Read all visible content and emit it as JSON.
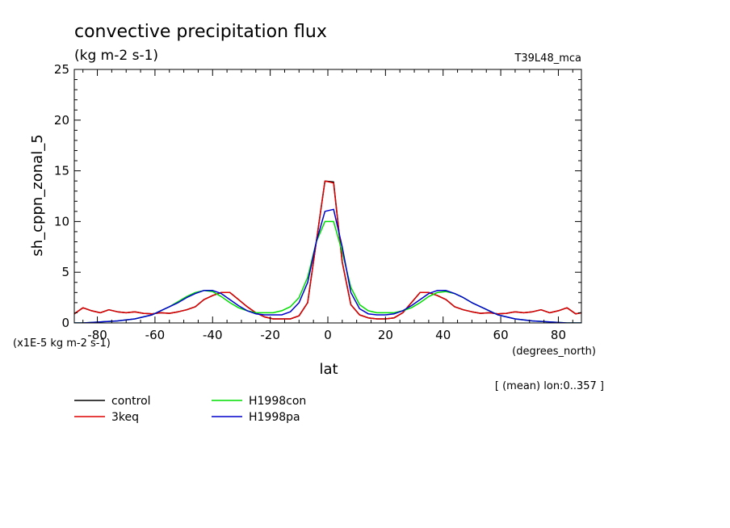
{
  "chart_data": {
    "type": "line",
    "title": "convective precipitation flux",
    "units": "(kg m-2 s-1)",
    "run_label": "T39L48_mca",
    "ylabel": "sh_cppn_zonal_5",
    "xlabel": "lat",
    "x_units": "(degrees_north)",
    "y_scale_note": "(x1E-5 kg m-2 s-1)",
    "mean_note": "[ (mean) lon:0..357 ]",
    "xlim": [
      -88,
      88
    ],
    "ylim": [
      0,
      25
    ],
    "x_ticks": [
      -80,
      -60,
      -40,
      -20,
      0,
      20,
      40,
      60,
      80
    ],
    "x_tick_labels": [
      "-80",
      "-60",
      "-40",
      "-20",
      "0",
      "20",
      "40",
      "60",
      "80"
    ],
    "y_ticks": [
      0,
      5,
      10,
      15,
      20,
      25
    ],
    "y_tick_labels": [
      "0",
      "5",
      "10",
      "15",
      "20",
      "25"
    ],
    "series": [
      {
        "name": "control",
        "color": "#000000",
        "x": [
          -88,
          -85,
          -82,
          -79,
          -76,
          -73,
          -70,
          -67,
          -64,
          -61,
          -58,
          -55,
          -52,
          -49,
          -46,
          -43,
          -40,
          -37,
          -34,
          -31,
          -28,
          -25,
          -22,
          -19,
          -16,
          -13,
          -10,
          -7,
          -4,
          -1,
          2,
          5,
          8,
          11,
          14,
          17,
          20,
          23,
          26,
          29,
          32,
          35,
          38,
          41,
          44,
          47,
          50,
          53,
          56,
          59,
          62,
          65,
          68,
          71,
          74,
          77,
          80,
          83,
          86,
          88
        ],
        "y": [
          0.9,
          1.5,
          1.2,
          1.0,
          1.3,
          1.1,
          1.0,
          1.1,
          0.95,
          0.9,
          1.0,
          0.95,
          1.1,
          1.3,
          1.6,
          2.3,
          2.7,
          3.0,
          3.0,
          2.3,
          1.6,
          1.0,
          0.6,
          0.4,
          0.4,
          0.4,
          0.7,
          2.0,
          8.0,
          14.0,
          13.9,
          6.0,
          1.8,
          0.8,
          0.5,
          0.4,
          0.4,
          0.5,
          1.0,
          2.0,
          3.0,
          3.0,
          2.7,
          2.3,
          1.6,
          1.3,
          1.1,
          0.95,
          1.0,
          0.9,
          0.95,
          1.1,
          1.0,
          1.1,
          1.3,
          1.0,
          1.2,
          1.5,
          0.9,
          1.0
        ]
      },
      {
        "name": "3keq",
        "color": "#dd0000",
        "x": [
          -88,
          -85,
          -82,
          -79,
          -76,
          -73,
          -70,
          -67,
          -64,
          -61,
          -58,
          -55,
          -52,
          -49,
          -46,
          -43,
          -40,
          -37,
          -34,
          -31,
          -28,
          -25,
          -22,
          -19,
          -16,
          -13,
          -10,
          -7,
          -4,
          -1,
          2,
          5,
          8,
          11,
          14,
          17,
          20,
          23,
          26,
          29,
          32,
          35,
          38,
          41,
          44,
          47,
          50,
          53,
          56,
          59,
          62,
          65,
          68,
          71,
          74,
          77,
          80,
          83,
          86,
          88
        ],
        "y": [
          0.9,
          1.5,
          1.2,
          1.0,
          1.3,
          1.1,
          1.0,
          1.1,
          0.95,
          0.9,
          1.0,
          0.95,
          1.1,
          1.3,
          1.6,
          2.3,
          2.7,
          3.0,
          3.0,
          2.3,
          1.6,
          1.0,
          0.6,
          0.4,
          0.4,
          0.4,
          0.7,
          2.0,
          8.0,
          14.0,
          13.8,
          6.0,
          1.8,
          0.8,
          0.5,
          0.4,
          0.4,
          0.5,
          1.0,
          2.0,
          3.0,
          3.0,
          2.7,
          2.3,
          1.6,
          1.3,
          1.1,
          0.95,
          1.0,
          0.9,
          0.95,
          1.1,
          1.0,
          1.1,
          1.3,
          1.0,
          1.2,
          1.5,
          0.9,
          1.0
        ]
      },
      {
        "name": "H1998con",
        "color": "#00dd00",
        "x": [
          -88,
          -85,
          -82,
          -79,
          -76,
          -73,
          -70,
          -67,
          -64,
          -61,
          -58,
          -55,
          -52,
          -49,
          -46,
          -43,
          -40,
          -37,
          -34,
          -31,
          -28,
          -25,
          -22,
          -19,
          -16,
          -13,
          -10,
          -7,
          -4,
          -1,
          2,
          5,
          8,
          11,
          14,
          17,
          20,
          23,
          26,
          29,
          32,
          35,
          38,
          41,
          44,
          47,
          50,
          53,
          56,
          59,
          62,
          65,
          68,
          71,
          74,
          77,
          80,
          83,
          86,
          88
        ],
        "y": [
          0.0,
          0.0,
          0.05,
          0.1,
          0.15,
          0.2,
          0.3,
          0.4,
          0.6,
          0.8,
          1.2,
          1.6,
          2.1,
          2.6,
          3.0,
          3.2,
          3.1,
          2.6,
          2.0,
          1.5,
          1.2,
          1.0,
          1.0,
          1.0,
          1.2,
          1.6,
          2.5,
          4.5,
          8.0,
          10.0,
          10.0,
          7.0,
          3.5,
          1.8,
          1.2,
          1.0,
          1.0,
          1.0,
          1.2,
          1.5,
          2.0,
          2.6,
          3.0,
          3.1,
          2.9,
          2.5,
          2.0,
          1.6,
          1.2,
          0.8,
          0.6,
          0.4,
          0.3,
          0.2,
          0.15,
          0.1,
          0.05,
          0.0,
          0.0,
          0.0
        ]
      },
      {
        "name": "H1998pa",
        "color": "#0000cc",
        "x": [
          -88,
          -85,
          -82,
          -79,
          -76,
          -73,
          -70,
          -67,
          -64,
          -61,
          -58,
          -55,
          -52,
          -49,
          -46,
          -43,
          -40,
          -37,
          -34,
          -31,
          -28,
          -25,
          -22,
          -19,
          -16,
          -13,
          -10,
          -7,
          -4,
          -1,
          2,
          5,
          8,
          11,
          14,
          17,
          20,
          23,
          26,
          29,
          32,
          35,
          38,
          41,
          44,
          47,
          50,
          53,
          56,
          59,
          62,
          65,
          68,
          71,
          74,
          77,
          80,
          83,
          86,
          88
        ],
        "y": [
          0.0,
          0.0,
          0.05,
          0.1,
          0.15,
          0.2,
          0.3,
          0.4,
          0.6,
          0.8,
          1.2,
          1.6,
          2.0,
          2.5,
          2.9,
          3.2,
          3.2,
          2.9,
          2.3,
          1.7,
          1.2,
          0.9,
          0.8,
          0.8,
          0.8,
          1.1,
          2.0,
          4.0,
          8.0,
          11.0,
          11.2,
          7.5,
          3.0,
          1.4,
          0.9,
          0.8,
          0.8,
          0.9,
          1.2,
          1.7,
          2.3,
          2.9,
          3.2,
          3.2,
          2.9,
          2.5,
          2.0,
          1.6,
          1.2,
          0.8,
          0.6,
          0.4,
          0.3,
          0.2,
          0.15,
          0.1,
          0.05,
          0.0,
          0.0,
          0.0
        ]
      }
    ]
  }
}
